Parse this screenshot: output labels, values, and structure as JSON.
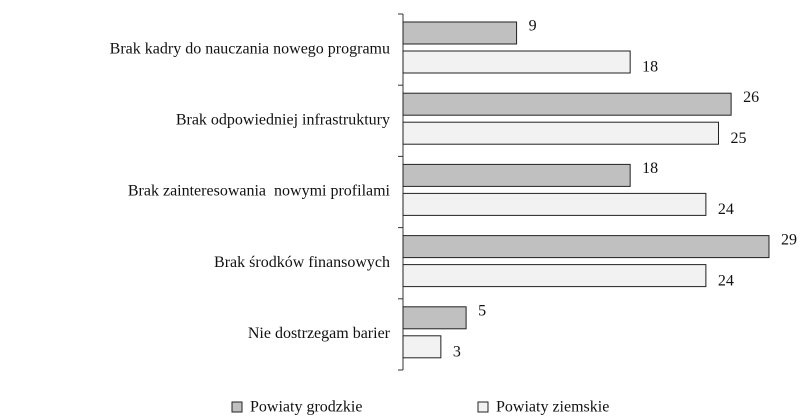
{
  "chart_data": {
    "type": "bar",
    "orientation": "horizontal",
    "categories": [
      "Brak kadry do nauczania nowego programu",
      "Brak odpowiedniej infrastruktury",
      "Brak zainteresowania  nowymi profilami",
      "Brak środków finansowych",
      "Nie dostrzegam barier"
    ],
    "series": [
      {
        "name": "Powiaty grodzkie",
        "color": "#c0c0c0",
        "values": [
          9,
          26,
          18,
          29,
          5
        ]
      },
      {
        "name": "Powiaty ziemskie",
        "color": "#f2f2f2",
        "values": [
          18,
          25,
          24,
          24,
          3
        ]
      }
    ]
  }
}
